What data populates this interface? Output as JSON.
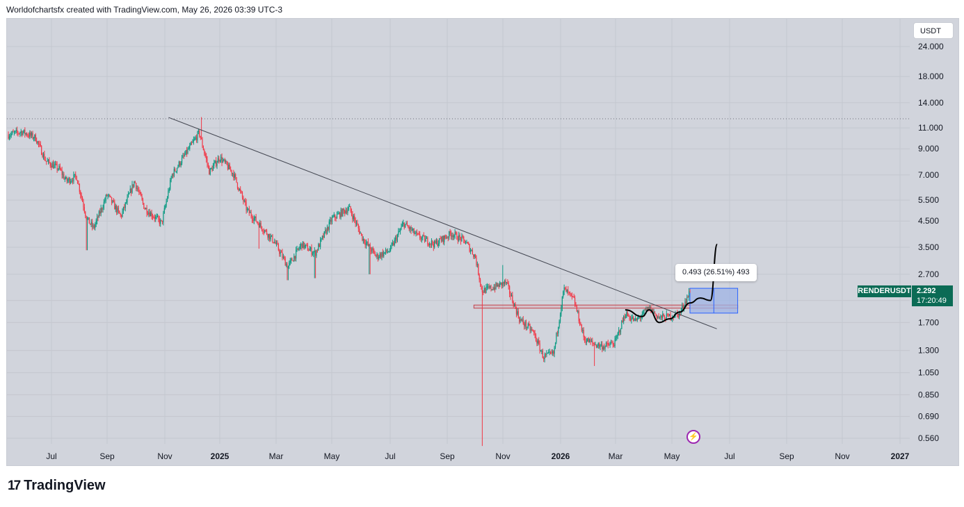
{
  "header": {
    "attribution": "Worldofchartsfx created with TradingView.com, May 26, 2026 03:39 UTC-3"
  },
  "footer": {
    "brand": "TradingView",
    "brand_mark": "17"
  },
  "colors": {
    "up": "#089981",
    "down": "#f23645",
    "background": "#d1d4dc",
    "grid": "#c4c7cf",
    "label_bg": "#0b6b55",
    "projection_box": "#9fb4e6"
  },
  "icons": {
    "bolt": "lightning-icon"
  },
  "chart_data": {
    "type": "candlestick",
    "symbol": "RENDERUSDT",
    "currency": "USDT",
    "scale": "log",
    "last_price": "2.292",
    "countdown": "17:20:49",
    "y_ticks": [
      "24.000",
      "18.000",
      "14.000",
      "11.000",
      "9.000",
      "7.000",
      "5.500",
      "4.500",
      "3.500",
      "2.700",
      "2.100",
      "1.700",
      "1.300",
      "1.050",
      "0.850",
      "0.690",
      "0.560"
    ],
    "x_ticks": [
      {
        "label": "Jul",
        "bold": false
      },
      {
        "label": "Sep",
        "bold": false
      },
      {
        "label": "Nov",
        "bold": false
      },
      {
        "label": "2025",
        "bold": true
      },
      {
        "label": "Mar",
        "bold": false
      },
      {
        "label": "May",
        "bold": false
      },
      {
        "label": "Jul",
        "bold": false
      },
      {
        "label": "Sep",
        "bold": false
      },
      {
        "label": "Nov",
        "bold": false
      },
      {
        "label": "2026",
        "bold": true
      },
      {
        "label": "Mar",
        "bold": false
      },
      {
        "label": "May",
        "bold": false
      },
      {
        "label": "Jul",
        "bold": false
      },
      {
        "label": "Sep",
        "bold": false
      },
      {
        "label": "Nov",
        "bold": false
      },
      {
        "label": "2027",
        "bold": true
      }
    ],
    "anchors": [
      {
        "t": 0,
        "p": 10.3
      },
      {
        "t": 0.02,
        "p": 10.6
      },
      {
        "t": 0.04,
        "p": 10.0
      },
      {
        "t": 0.055,
        "p": 8.0
      },
      {
        "t": 0.075,
        "p": 7.4
      },
      {
        "t": 0.085,
        "p": 6.6
      },
      {
        "t": 0.1,
        "p": 6.9
      },
      {
        "t": 0.115,
        "p": 4.6
      },
      {
        "t": 0.125,
        "p": 4.2
      },
      {
        "t": 0.145,
        "p": 5.8
      },
      {
        "t": 0.165,
        "p": 4.7
      },
      {
        "t": 0.185,
        "p": 6.6
      },
      {
        "t": 0.2,
        "p": 5.1
      },
      {
        "t": 0.225,
        "p": 4.4
      },
      {
        "t": 0.24,
        "p": 7.0
      },
      {
        "t": 0.265,
        "p": 9.0
      },
      {
        "t": 0.28,
        "p": 10.5
      },
      {
        "t": 0.295,
        "p": 7.2
      },
      {
        "t": 0.31,
        "p": 8.3
      },
      {
        "t": 0.33,
        "p": 7.1
      },
      {
        "t": 0.35,
        "p": 5.0
      },
      {
        "t": 0.37,
        "p": 4.3
      },
      {
        "t": 0.39,
        "p": 3.7
      },
      {
        "t": 0.41,
        "p": 2.9
      },
      {
        "t": 0.43,
        "p": 3.6
      },
      {
        "t": 0.45,
        "p": 3.3
      },
      {
        "t": 0.475,
        "p": 4.6
      },
      {
        "t": 0.5,
        "p": 5.1
      },
      {
        "t": 0.52,
        "p": 3.8
      },
      {
        "t": 0.54,
        "p": 3.2
      },
      {
        "t": 0.56,
        "p": 3.4
      },
      {
        "t": 0.58,
        "p": 4.4
      },
      {
        "t": 0.6,
        "p": 3.9
      },
      {
        "t": 0.625,
        "p": 3.6
      },
      {
        "t": 0.65,
        "p": 4.0
      },
      {
        "t": 0.67,
        "p": 3.7
      },
      {
        "t": 0.685,
        "p": 3.2
      },
      {
        "t": 0.695,
        "p": 2.3
      },
      {
        "t": 0.715,
        "p": 2.4
      },
      {
        "t": 0.73,
        "p": 2.5
      },
      {
        "t": 0.75,
        "p": 1.75
      },
      {
        "t": 0.77,
        "p": 1.55
      },
      {
        "t": 0.785,
        "p": 1.22
      },
      {
        "t": 0.8,
        "p": 1.26
      },
      {
        "t": 0.815,
        "p": 2.35
      },
      {
        "t": 0.83,
        "p": 2.1
      },
      {
        "t": 0.845,
        "p": 1.45
      },
      {
        "t": 0.86,
        "p": 1.38
      },
      {
        "t": 0.875,
        "p": 1.35
      },
      {
        "t": 0.89,
        "p": 1.4
      },
      {
        "t": 0.905,
        "p": 1.85
      },
      {
        "t": 0.92,
        "p": 1.72
      },
      {
        "t": 0.94,
        "p": 1.95
      },
      {
        "t": 0.955,
        "p": 1.78
      },
      {
        "t": 0.97,
        "p": 1.8
      },
      {
        "t": 0.985,
        "p": 1.85
      },
      {
        "t": 1,
        "p": 2.29
      }
    ],
    "spikes": [
      {
        "t": 0.115,
        "low": 3.4
      },
      {
        "t": 0.368,
        "low": 3.45
      },
      {
        "t": 0.41,
        "low": 2.55
      },
      {
        "t": 0.45,
        "low": 2.6
      },
      {
        "t": 0.53,
        "low": 2.7
      },
      {
        "t": 0.695,
        "low": 0.52
      },
      {
        "t": 0.725,
        "high": 2.95
      },
      {
        "t": 0.86,
        "low": 1.12
      },
      {
        "t": 0.283,
        "high": 12.2
      }
    ],
    "dotted_level": 12.0,
    "trendline": {
      "start": {
        "t": 0.283,
        "p": 12.0
      },
      "end_date_t": 1.07,
      "end_p": 1.6
    },
    "support_zone": {
      "t0": 0.683,
      "t1": 1.07,
      "low": 1.95,
      "high": 2.01
    },
    "projection_box": {
      "t0": 1.0,
      "t1": 1.07,
      "low": 1.86,
      "high": 2.36
    },
    "projection_path": [
      {
        "t": 0.905,
        "p": 1.92
      },
      {
        "t": 0.93,
        "p": 1.8
      },
      {
        "t": 0.94,
        "p": 1.92
      },
      {
        "t": 0.955,
        "p": 1.7
      },
      {
        "t": 0.97,
        "p": 1.76
      },
      {
        "t": 0.985,
        "p": 1.88
      },
      {
        "t": 1.0,
        "p": 2.05
      },
      {
        "t": 1.015,
        "p": 2.15
      },
      {
        "t": 1.03,
        "p": 2.1
      },
      {
        "t": 1.04,
        "p": 3.6
      }
    ],
    "measurement": "0.493 (26.51%) 493"
  }
}
